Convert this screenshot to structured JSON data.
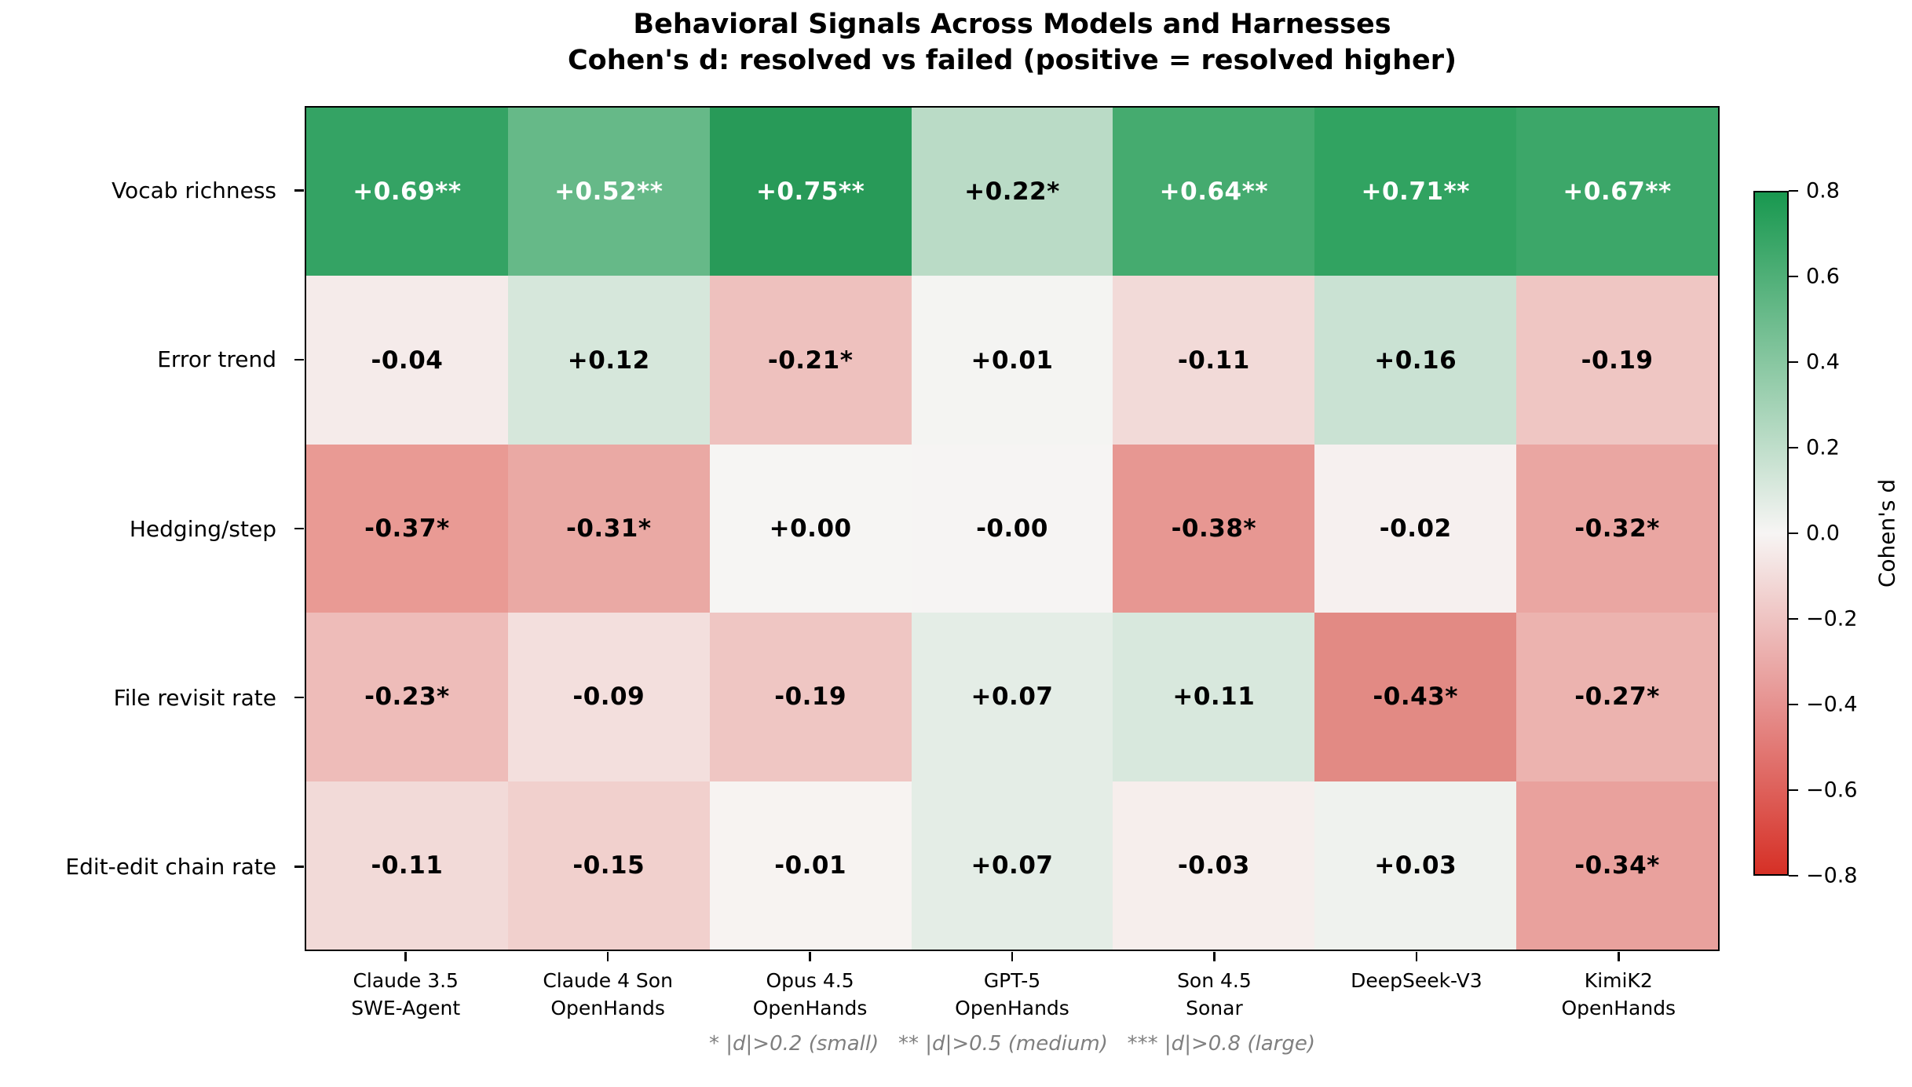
{
  "figure": {
    "title_line1": "Behavioral Signals Across Models and Harnesses",
    "title_line2": "Cohen's d: resolved vs failed (positive = resolved higher)",
    "footnote": "* |d|>0.2 (small)   ** |d|>0.5 (medium)   *** |d|>0.8 (large)",
    "background": "#ffffff"
  },
  "chart_data": {
    "type": "heatmap",
    "title": "Behavioral Signals Across Models and Harnesses",
    "subtitle": "Cohen's d: resolved vs failed (positive = resolved higher)",
    "rows": [
      "Vocab richness",
      "Error trend",
      "Hedging/step",
      "File revisit rate",
      "Edit-edit chain rate"
    ],
    "columns": [
      [
        "Claude 3.5",
        "SWE-Agent"
      ],
      [
        "Claude 4 Son",
        "OpenHands"
      ],
      [
        "Opus 4.5",
        "OpenHands"
      ],
      [
        "GPT-5",
        "OpenHands"
      ],
      [
        "Son 4.5",
        "Sonar"
      ],
      [
        "DeepSeek-V3",
        ""
      ],
      [
        "KimiK2",
        "OpenHands"
      ]
    ],
    "values": [
      [
        0.69,
        0.52,
        0.75,
        0.22,
        0.64,
        0.71,
        0.67
      ],
      [
        -0.04,
        0.12,
        -0.21,
        0.01,
        -0.11,
        0.16,
        -0.19
      ],
      [
        -0.37,
        -0.31,
        0.0,
        -0.0,
        -0.38,
        -0.02,
        -0.32
      ],
      [
        -0.23,
        -0.09,
        -0.19,
        0.07,
        0.11,
        -0.43,
        -0.27
      ],
      [
        -0.11,
        -0.15,
        -0.01,
        0.07,
        -0.03,
        0.03,
        -0.34
      ]
    ],
    "labels": [
      [
        "+0.69**",
        "+0.52**",
        "+0.75**",
        "+0.22*",
        "+0.64**",
        "+0.71**",
        "+0.67**"
      ],
      [
        "-0.04",
        "+0.12",
        "-0.21*",
        "+0.01",
        "-0.11",
        "+0.16",
        "-0.19"
      ],
      [
        "-0.37*",
        "-0.31*",
        "+0.00",
        "-0.00",
        "-0.38*",
        "-0.02",
        "-0.32*"
      ],
      [
        "-0.23*",
        "-0.09",
        "-0.19",
        "+0.07",
        "+0.11",
        "-0.43*",
        "-0.27*"
      ],
      [
        "-0.11",
        "-0.15",
        "-0.01",
        "+0.07",
        "-0.03",
        "+0.03",
        "-0.34*"
      ]
    ],
    "cell_colors": [
      [
        "#34A364",
        "#66B988",
        "#289A58",
        "#BADBC6",
        "#45AB6F",
        "#31A361",
        "#3CA769"
      ],
      [
        "#F5EBEA",
        "#D6E7DB",
        "#EEC1BE",
        "#F4F4F2",
        "#F2DAD8",
        "#CAE2D3",
        "#EFC6C3"
      ],
      [
        "#E99A94",
        "#EAA9A4",
        "#F6F5F3",
        "#F6F4F3",
        "#E79792",
        "#F6F0EF",
        "#EAA6A2"
      ],
      [
        "#EEBCB9",
        "#F3DFDD",
        "#EFC6C3",
        "#E4EDE6",
        "#D8E8DD",
        "#E28A84",
        "#ECB3AF"
      ],
      [
        "#F2DAD8",
        "#F1D0CD",
        "#F7F3F1",
        "#E4EDE6",
        "#F6EEEC",
        "#EFF2EE",
        "#E9A19D"
      ]
    ],
    "text_colors": [
      [
        "#ffffff",
        "#ffffff",
        "#ffffff",
        "#000000",
        "#ffffff",
        "#ffffff",
        "#ffffff"
      ],
      [
        "#000000",
        "#000000",
        "#000000",
        "#000000",
        "#000000",
        "#000000",
        "#000000"
      ],
      [
        "#000000",
        "#000000",
        "#000000",
        "#000000",
        "#000000",
        "#000000",
        "#000000"
      ],
      [
        "#000000",
        "#000000",
        "#000000",
        "#000000",
        "#000000",
        "#000000",
        "#000000"
      ],
      [
        "#000000",
        "#000000",
        "#000000",
        "#000000",
        "#000000",
        "#000000",
        "#000000"
      ]
    ],
    "colorbar": {
      "label": "Cohen's d",
      "tick_labels": [
        "0.8",
        "0.6",
        "0.4",
        "0.2",
        "0.0",
        "−0.2",
        "−0.4",
        "−0.6",
        "−0.8"
      ],
      "tick_values": [
        0.8,
        0.6,
        0.4,
        0.2,
        0.0,
        -0.2,
        -0.4,
        -0.6,
        -0.8
      ],
      "vmin": -0.8,
      "vmax": 0.8,
      "gradient": [
        "#18984F",
        "#88C7A1",
        "#F7F5F4",
        "#E69290",
        "#D63026"
      ],
      "legend_position": "right"
    },
    "annotation": "* |d|>0.2 (small)   ** |d|>0.5 (medium)   *** |d|>0.8 (large)",
    "grid": false,
    "accent_positive": "#18984F",
    "accent_negative": "#D63026"
  }
}
